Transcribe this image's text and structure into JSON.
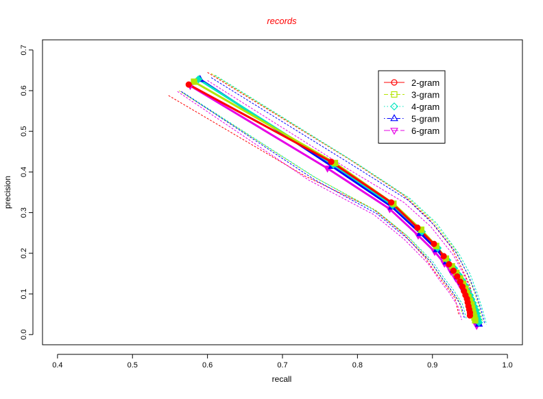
{
  "chart_data": {
    "type": "line",
    "title": "records",
    "xlabel": "recall",
    "ylabel": "precision",
    "xlim": [
      0.38,
      1.02
    ],
    "ylim": [
      -0.025,
      0.725
    ],
    "xticks": [
      "0.4",
      "0.5",
      "0.6",
      "0.7",
      "0.8",
      "0.9",
      "1.0"
    ],
    "yticks": [
      "0.0",
      "0.1",
      "0.2",
      "0.3",
      "0.4",
      "0.5",
      "0.6",
      "0.7"
    ],
    "grid": false,
    "legend_position": "top-right",
    "colors": {
      "title": "#ff0000",
      "axis": "#000000"
    },
    "series": [
      {
        "name": "2-gram",
        "color": "#ff0000",
        "marker": "circle",
        "line_style": "solid",
        "values": [
          [
            0.575,
            0.615
          ],
          [
            0.765,
            0.425
          ],
          [
            0.845,
            0.325
          ],
          [
            0.88,
            0.263
          ],
          [
            0.902,
            0.223
          ],
          [
            0.915,
            0.193
          ],
          [
            0.922,
            0.173
          ],
          [
            0.928,
            0.157
          ],
          [
            0.933,
            0.143
          ],
          [
            0.937,
            0.13
          ],
          [
            0.94,
            0.118
          ],
          [
            0.942,
            0.107
          ],
          [
            0.944,
            0.097
          ],
          [
            0.946,
            0.088
          ],
          [
            0.947,
            0.079
          ],
          [
            0.948,
            0.07
          ],
          [
            0.949,
            0.062
          ],
          [
            0.95,
            0.054
          ],
          [
            0.95,
            0.047
          ]
        ],
        "band_upper": [
          [
            0.6,
            0.645
          ],
          [
            0.79,
            0.43
          ],
          [
            0.86,
            0.345
          ],
          [
            0.895,
            0.285
          ],
          [
            0.925,
            0.215
          ],
          [
            0.94,
            0.16
          ],
          [
            0.95,
            0.12
          ],
          [
            0.955,
            0.08
          ],
          [
            0.958,
            0.05
          ]
        ],
        "band_lower": [
          [
            0.548,
            0.588
          ],
          [
            0.73,
            0.39
          ],
          [
            0.82,
            0.31
          ],
          [
            0.86,
            0.25
          ],
          [
            0.89,
            0.19
          ],
          [
            0.905,
            0.15
          ],
          [
            0.918,
            0.12
          ],
          [
            0.93,
            0.09
          ],
          [
            0.935,
            0.05
          ]
        ]
      },
      {
        "name": "3-gram",
        "color": "#b3e500",
        "marker": "square",
        "line_style": "dashed",
        "values": [
          [
            0.582,
            0.622
          ],
          [
            0.77,
            0.422
          ],
          [
            0.848,
            0.322
          ],
          [
            0.885,
            0.258
          ],
          [
            0.905,
            0.218
          ],
          [
            0.918,
            0.187
          ],
          [
            0.926,
            0.168
          ],
          [
            0.932,
            0.152
          ],
          [
            0.937,
            0.138
          ],
          [
            0.941,
            0.125
          ],
          [
            0.944,
            0.113
          ],
          [
            0.946,
            0.102
          ],
          [
            0.948,
            0.092
          ],
          [
            0.95,
            0.083
          ],
          [
            0.952,
            0.074
          ],
          [
            0.953,
            0.065
          ],
          [
            0.954,
            0.057
          ],
          [
            0.955,
            0.049
          ],
          [
            0.956,
            0.042
          ],
          [
            0.957,
            0.035
          ]
        ],
        "band_upper": [
          [
            0.605,
            0.642
          ],
          [
            0.795,
            0.425
          ],
          [
            0.865,
            0.34
          ],
          [
            0.9,
            0.28
          ],
          [
            0.93,
            0.21
          ],
          [
            0.945,
            0.155
          ],
          [
            0.955,
            0.11
          ],
          [
            0.962,
            0.07
          ],
          [
            0.967,
            0.03
          ]
        ],
        "band_lower": [
          [
            0.562,
            0.6
          ],
          [
            0.74,
            0.39
          ],
          [
            0.825,
            0.305
          ],
          [
            0.865,
            0.245
          ],
          [
            0.895,
            0.185
          ],
          [
            0.91,
            0.145
          ],
          [
            0.922,
            0.115
          ],
          [
            0.935,
            0.085
          ],
          [
            0.94,
            0.05
          ]
        ]
      },
      {
        "name": "4-gram",
        "color": "#00e6bf",
        "marker": "diamond",
        "line_style": "dotted",
        "values": [
          [
            0.588,
            0.628
          ],
          [
            0.768,
            0.418
          ],
          [
            0.847,
            0.318
          ],
          [
            0.886,
            0.253
          ],
          [
            0.907,
            0.213
          ],
          [
            0.92,
            0.183
          ],
          [
            0.929,
            0.163
          ],
          [
            0.935,
            0.147
          ],
          [
            0.94,
            0.133
          ],
          [
            0.944,
            0.12
          ],
          [
            0.947,
            0.108
          ],
          [
            0.95,
            0.097
          ],
          [
            0.952,
            0.087
          ],
          [
            0.954,
            0.078
          ],
          [
            0.956,
            0.069
          ],
          [
            0.958,
            0.06
          ],
          [
            0.959,
            0.052
          ],
          [
            0.96,
            0.044
          ],
          [
            0.961,
            0.037
          ],
          [
            0.962,
            0.03
          ]
        ],
        "band_upper": [
          [
            0.61,
            0.638
          ],
          [
            0.8,
            0.42
          ],
          [
            0.87,
            0.335
          ],
          [
            0.905,
            0.275
          ],
          [
            0.935,
            0.2
          ],
          [
            0.95,
            0.15
          ],
          [
            0.96,
            0.1
          ],
          [
            0.967,
            0.06
          ],
          [
            0.972,
            0.025
          ]
        ],
        "band_lower": [
          [
            0.568,
            0.595
          ],
          [
            0.745,
            0.385
          ],
          [
            0.828,
            0.3
          ],
          [
            0.868,
            0.24
          ],
          [
            0.9,
            0.18
          ],
          [
            0.915,
            0.14
          ],
          [
            0.928,
            0.11
          ],
          [
            0.94,
            0.075
          ],
          [
            0.945,
            0.04
          ]
        ]
      },
      {
        "name": "5-gram",
        "color": "#0000ff",
        "marker": "triangle-up",
        "line_style": "dotdash",
        "values": [
          [
            0.59,
            0.628
          ],
          [
            0.766,
            0.414
          ],
          [
            0.846,
            0.314
          ],
          [
            0.884,
            0.249
          ],
          [
            0.906,
            0.209
          ],
          [
            0.919,
            0.179
          ],
          [
            0.928,
            0.159
          ],
          [
            0.934,
            0.143
          ],
          [
            0.939,
            0.129
          ],
          [
            0.943,
            0.116
          ],
          [
            0.947,
            0.104
          ],
          [
            0.95,
            0.093
          ],
          [
            0.952,
            0.083
          ],
          [
            0.954,
            0.074
          ],
          [
            0.956,
            0.065
          ],
          [
            0.958,
            0.056
          ],
          [
            0.959,
            0.048
          ],
          [
            0.96,
            0.04
          ],
          [
            0.961,
            0.033
          ],
          [
            0.962,
            0.026
          ]
        ],
        "band_upper": [
          [
            0.605,
            0.632
          ],
          [
            0.795,
            0.415
          ],
          [
            0.868,
            0.33
          ],
          [
            0.902,
            0.27
          ],
          [
            0.932,
            0.2
          ],
          [
            0.948,
            0.145
          ],
          [
            0.958,
            0.1
          ],
          [
            0.965,
            0.06
          ],
          [
            0.97,
            0.025
          ]
        ],
        "band_lower": [
          [
            0.565,
            0.598
          ],
          [
            0.742,
            0.382
          ],
          [
            0.826,
            0.297
          ],
          [
            0.866,
            0.237
          ],
          [
            0.898,
            0.178
          ],
          [
            0.913,
            0.138
          ],
          [
            0.926,
            0.107
          ],
          [
            0.938,
            0.072
          ],
          [
            0.943,
            0.038
          ]
        ]
      },
      {
        "name": "6-gram",
        "color": "#e600e6",
        "marker": "triangle-down",
        "line_style": "longdash",
        "values": [
          [
            0.577,
            0.612
          ],
          [
            0.76,
            0.409
          ],
          [
            0.843,
            0.309
          ],
          [
            0.881,
            0.244
          ],
          [
            0.903,
            0.204
          ],
          [
            0.916,
            0.175
          ],
          [
            0.925,
            0.155
          ],
          [
            0.931,
            0.139
          ],
          [
            0.936,
            0.125
          ],
          [
            0.94,
            0.112
          ],
          [
            0.944,
            0.1
          ],
          [
            0.947,
            0.089
          ],
          [
            0.949,
            0.079
          ],
          [
            0.951,
            0.07
          ],
          [
            0.953,
            0.061
          ],
          [
            0.955,
            0.052
          ],
          [
            0.956,
            0.044
          ],
          [
            0.957,
            0.036
          ],
          [
            0.958,
            0.029
          ],
          [
            0.959,
            0.022
          ]
        ],
        "band_upper": [
          [
            0.6,
            0.625
          ],
          [
            0.785,
            0.41
          ],
          [
            0.862,
            0.325
          ],
          [
            0.898,
            0.265
          ],
          [
            0.928,
            0.195
          ],
          [
            0.944,
            0.14
          ],
          [
            0.954,
            0.095
          ],
          [
            0.961,
            0.055
          ],
          [
            0.966,
            0.022
          ]
        ],
        "band_lower": [
          [
            0.56,
            0.598
          ],
          [
            0.735,
            0.38
          ],
          [
            0.822,
            0.295
          ],
          [
            0.862,
            0.235
          ],
          [
            0.894,
            0.175
          ],
          [
            0.909,
            0.135
          ],
          [
            0.922,
            0.104
          ],
          [
            0.934,
            0.07
          ],
          [
            0.939,
            0.036
          ]
        ]
      }
    ]
  }
}
